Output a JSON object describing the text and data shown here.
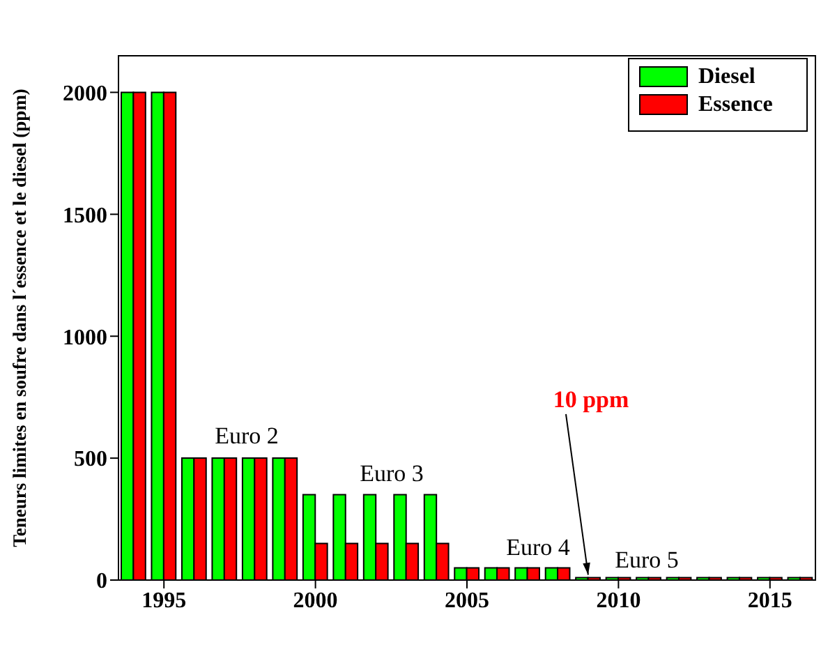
{
  "chart_data": {
    "type": "bar",
    "ylabel": "Teneurs limites en soufre dans l´essence et le diesel (ppm)",
    "x": [
      1994,
      1995,
      1996,
      1997,
      1998,
      1999,
      2000,
      2001,
      2002,
      2003,
      2004,
      2005,
      2006,
      2007,
      2008,
      2009,
      2010,
      2011,
      2012,
      2013,
      2014,
      2015,
      2016
    ],
    "series": [
      {
        "name": "Diesel",
        "color": "#00ff00",
        "values": [
          2000,
          2000,
          500,
          500,
          500,
          500,
          350,
          350,
          350,
          350,
          350,
          50,
          50,
          50,
          50,
          10,
          10,
          10,
          10,
          10,
          10,
          10,
          10
        ]
      },
      {
        "name": "Essence",
        "color": "#ff0000",
        "values": [
          2000,
          2000,
          500,
          500,
          500,
          500,
          150,
          150,
          150,
          150,
          150,
          50,
          50,
          50,
          50,
          10,
          10,
          10,
          10,
          10,
          10,
          10,
          10
        ]
      }
    ],
    "xlim": [
      1993.5,
      2016.5
    ],
    "xticks": [
      1995,
      2000,
      2005,
      2010,
      2015
    ],
    "ylim": [
      0,
      2150
    ],
    "yticks": [
      0,
      500,
      1000,
      1500,
      2000
    ],
    "legend": "top right",
    "annotations": [
      "Euro 2",
      "Euro 3",
      "Euro 4",
      "Euro 5",
      {
        "text": "10 ppm",
        "x": 2009,
        "y": 10
      }
    ]
  }
}
